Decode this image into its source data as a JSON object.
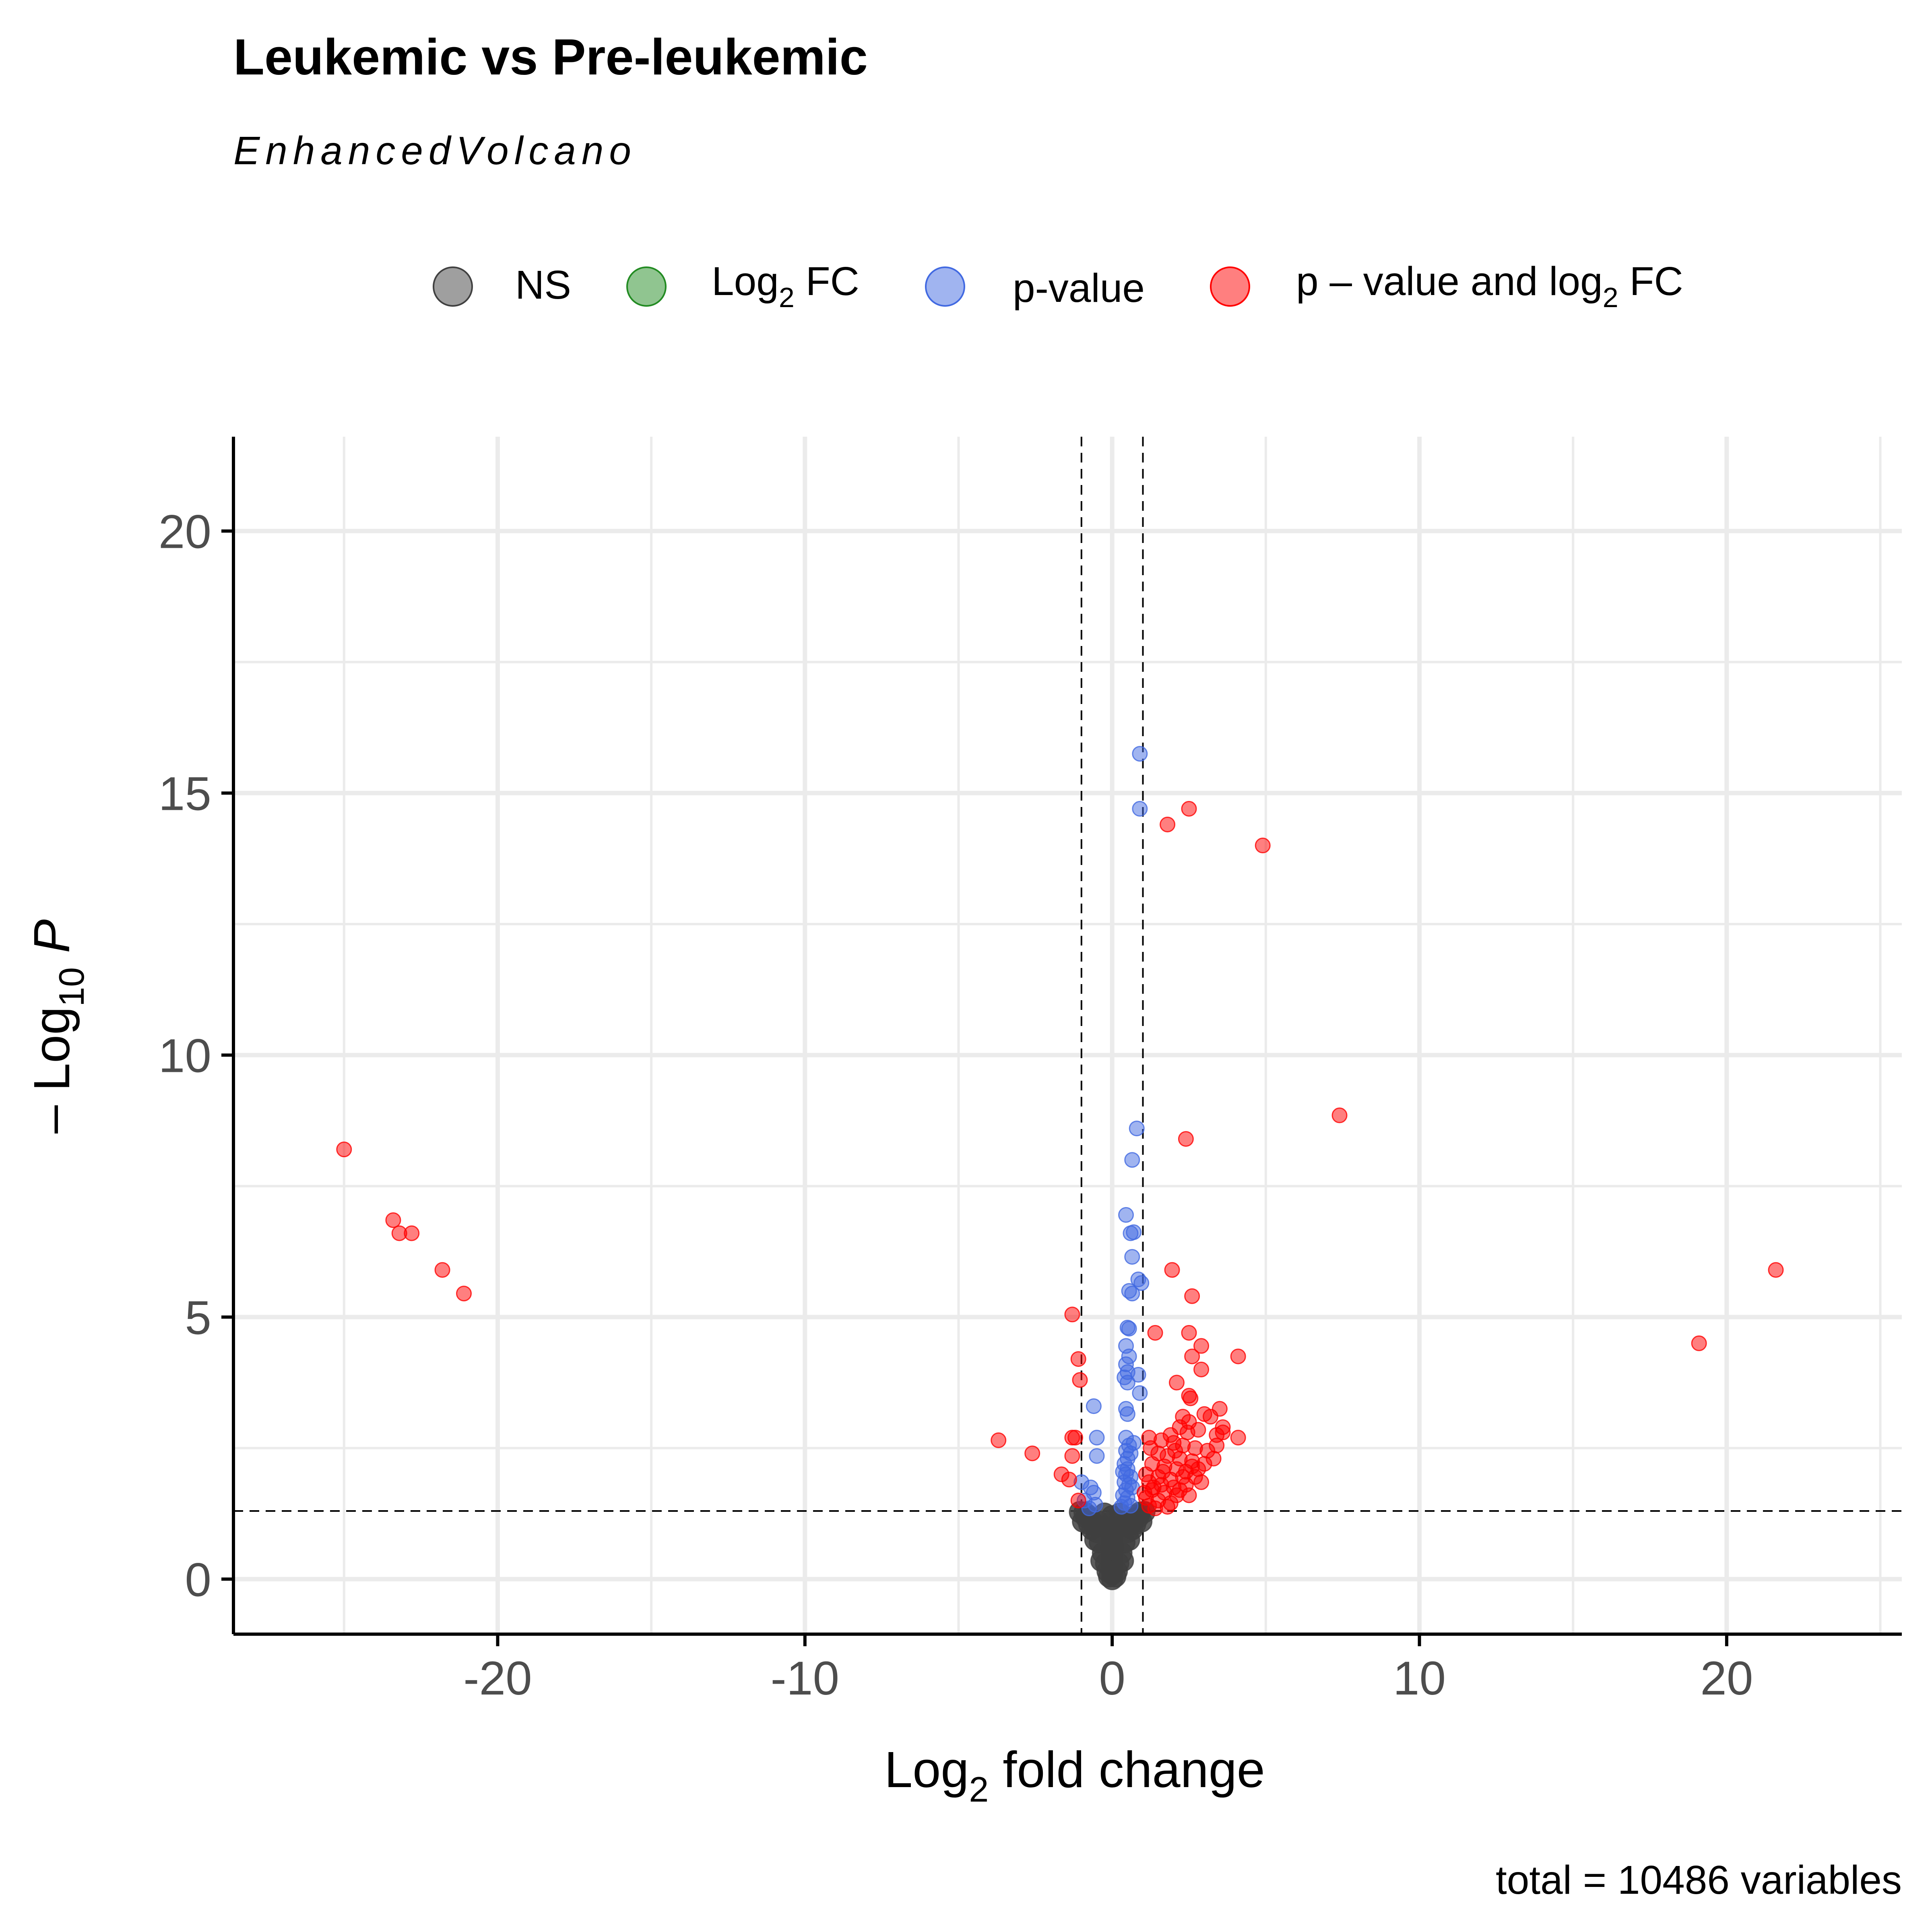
{
  "chart_data": {
    "type": "scatter",
    "title": "Leukemic vs Pre-leukemic",
    "subtitle": "EnhancedVolcano",
    "caption": "total = 10486 variables",
    "xlabel": {
      "main": "Log",
      "sub": "2",
      "rest": " fold change"
    },
    "ylabel": {
      "prefix": "– Log",
      "sub": "10",
      "italic": "P"
    },
    "xlim": [
      -28.6,
      25.7
    ],
    "ylim": [
      -1.05,
      21.8
    ],
    "x_ticks": [
      {
        "value": -20,
        "label": "-20"
      },
      {
        "value": -10,
        "label": "-10"
      },
      {
        "value": 0,
        "label": "0"
      },
      {
        "value": 10,
        "label": "10"
      },
      {
        "value": 20,
        "label": "20"
      }
    ],
    "y_ticks": [
      {
        "value": 0,
        "label": "0"
      },
      {
        "value": 5,
        "label": "5"
      },
      {
        "value": 10,
        "label": "10"
      },
      {
        "value": 15,
        "label": "15"
      },
      {
        "value": 20,
        "label": "20"
      }
    ],
    "x_minor_grid": [
      -25,
      -15,
      -5,
      5,
      15,
      25
    ],
    "y_minor_grid": [
      2.5,
      7.5,
      12.5,
      17.5
    ],
    "grid": true,
    "cutoffs": {
      "fc": [
        -1,
        1
      ],
      "p": 1.3
    },
    "legend": {
      "position": "top",
      "entries": [
        {
          "key": "ns",
          "label": "NS",
          "color": "#404040"
        },
        {
          "key": "fc",
          "label_main": "Log",
          "label_sub": "2",
          "label_rest": " FC",
          "color": "#228b22"
        },
        {
          "key": "p",
          "label": "p-value",
          "color": "#4169e1"
        },
        {
          "key": "both",
          "label_main": "p – value and log",
          "label_sub": "2",
          "label_rest": " FC",
          "color": "#ff0000"
        }
      ]
    },
    "series": [
      {
        "key": "ns",
        "color": "#404040",
        "points": [
          [
            0,
            0
          ],
          [
            0,
            0.1
          ],
          [
            0,
            0.2
          ],
          [
            0,
            0.3
          ],
          [
            0,
            0.4
          ],
          [
            0,
            0.5
          ],
          [
            0,
            0.6
          ],
          [
            0,
            0.7
          ],
          [
            0,
            0.8
          ],
          [
            0,
            0.9
          ],
          [
            0,
            1.0
          ],
          [
            0,
            1.1
          ],
          [
            0,
            1.2
          ],
          [
            -0.1,
            0.05
          ],
          [
            0.1,
            0.05
          ],
          [
            -0.15,
            0.15
          ],
          [
            0.15,
            0.15
          ],
          [
            -0.2,
            0.3
          ],
          [
            0.2,
            0.3
          ],
          [
            -0.3,
            0.5
          ],
          [
            0.3,
            0.5
          ],
          [
            -0.4,
            0.7
          ],
          [
            0.4,
            0.7
          ],
          [
            -0.5,
            0.9
          ],
          [
            0.5,
            0.9
          ],
          [
            -0.6,
            1.05
          ],
          [
            0.6,
            1.05
          ],
          [
            -0.7,
            1.15
          ],
          [
            0.7,
            1.15
          ],
          [
            -0.8,
            1.22
          ],
          [
            0.8,
            1.22
          ],
          [
            -0.9,
            1.27
          ],
          [
            0.9,
            1.27
          ],
          [
            -0.25,
            1.25
          ],
          [
            0.25,
            1.25
          ],
          [
            -0.35,
            0.35
          ],
          [
            0.35,
            0.35
          ],
          [
            -0.55,
            0.75
          ],
          [
            0.55,
            0.75
          ],
          [
            -0.45,
            1.1
          ],
          [
            0.45,
            1.1
          ],
          [
            -0.65,
            0.95
          ],
          [
            0.65,
            0.95
          ],
          [
            -0.75,
            1.05
          ],
          [
            0.75,
            1.05
          ],
          [
            -0.05,
            0.6
          ],
          [
            0.05,
            0.6
          ],
          [
            -0.12,
            0.95
          ],
          [
            0.12,
            0.95
          ],
          [
            -0.85,
            1.18
          ],
          [
            0.85,
            1.18
          ],
          [
            -1.05,
            1.28
          ],
          [
            1.05,
            1.28
          ],
          [
            -0.95,
            1.1
          ],
          [
            0.95,
            1.1
          ]
        ]
      },
      {
        "key": "p",
        "color": "#4169e1",
        "points": [
          [
            0.9,
            15.75
          ],
          [
            0.9,
            14.7
          ],
          [
            0.8,
            8.6
          ],
          [
            0.65,
            8.0
          ],
          [
            0.45,
            6.95
          ],
          [
            0.6,
            6.6
          ],
          [
            0.7,
            6.62
          ],
          [
            0.65,
            6.15
          ],
          [
            0.85,
            5.72
          ],
          [
            0.95,
            5.65
          ],
          [
            0.55,
            5.5
          ],
          [
            0.65,
            5.45
          ],
          [
            0.5,
            4.8
          ],
          [
            0.55,
            4.78
          ],
          [
            0.45,
            4.45
          ],
          [
            0.55,
            4.25
          ],
          [
            0.45,
            4.1
          ],
          [
            0.5,
            3.95
          ],
          [
            0.4,
            3.85
          ],
          [
            0.5,
            3.75
          ],
          [
            0.85,
            3.9
          ],
          [
            0.9,
            3.55
          ],
          [
            -0.6,
            3.3
          ],
          [
            0.45,
            3.25
          ],
          [
            0.5,
            3.15
          ],
          [
            -0.5,
            2.7
          ],
          [
            0.45,
            2.7
          ],
          [
            0.55,
            2.55
          ],
          [
            0.45,
            2.45
          ],
          [
            0.6,
            2.4
          ],
          [
            0.5,
            2.3
          ],
          [
            0.4,
            2.2
          ],
          [
            -0.5,
            2.35
          ],
          [
            0.5,
            2.1
          ],
          [
            0.45,
            2.0
          ],
          [
            0.6,
            1.95
          ],
          [
            0.4,
            1.85
          ],
          [
            0.55,
            1.8
          ],
          [
            -1.0,
            1.85
          ],
          [
            -0.7,
            1.75
          ],
          [
            0.45,
            1.7
          ],
          [
            -0.6,
            1.65
          ],
          [
            0.35,
            1.6
          ],
          [
            0.5,
            1.55
          ],
          [
            -0.9,
            1.5
          ],
          [
            0.4,
            1.45
          ],
          [
            -0.55,
            1.42
          ],
          [
            0.6,
            1.4
          ],
          [
            0.3,
            1.38
          ],
          [
            -0.75,
            1.35
          ],
          [
            0.7,
            2.6
          ],
          [
            0.35,
            2.05
          ],
          [
            0.65,
            1.75
          ]
        ]
      },
      {
        "key": "both",
        "color": "#ff0000",
        "points": [
          [
            -25.0,
            8.2
          ],
          [
            -23.4,
            6.85
          ],
          [
            -23.2,
            6.6
          ],
          [
            -22.8,
            6.6
          ],
          [
            -21.8,
            5.9
          ],
          [
            -21.1,
            5.45
          ],
          [
            2.5,
            14.7
          ],
          [
            1.8,
            14.4
          ],
          [
            4.9,
            14.0
          ],
          [
            7.4,
            8.85
          ],
          [
            2.4,
            8.4
          ],
          [
            21.6,
            5.9
          ],
          [
            19.1,
            4.5
          ],
          [
            1.95,
            5.9
          ],
          [
            2.6,
            5.4
          ],
          [
            -1.3,
            5.05
          ],
          [
            -1.1,
            4.2
          ],
          [
            -1.05,
            3.8
          ],
          [
            -1.3,
            2.7
          ],
          [
            -1.2,
            2.7
          ],
          [
            -3.7,
            2.65
          ],
          [
            -2.6,
            2.4
          ],
          [
            -1.3,
            2.35
          ],
          [
            -1.65,
            2.0
          ],
          [
            -1.4,
            1.9
          ],
          [
            -1.1,
            1.5
          ],
          [
            1.4,
            4.7
          ],
          [
            2.5,
            4.7
          ],
          [
            2.9,
            4.45
          ],
          [
            2.6,
            4.25
          ],
          [
            4.1,
            4.25
          ],
          [
            2.9,
            4.0
          ],
          [
            2.1,
            3.75
          ],
          [
            2.5,
            3.5
          ],
          [
            2.55,
            3.45
          ],
          [
            3.5,
            3.25
          ],
          [
            3.0,
            3.15
          ],
          [
            2.3,
            3.1
          ],
          [
            3.2,
            3.1
          ],
          [
            2.5,
            3.0
          ],
          [
            2.8,
            2.85
          ],
          [
            3.4,
            2.75
          ],
          [
            4.1,
            2.7
          ],
          [
            1.2,
            2.7
          ],
          [
            1.6,
            2.65
          ],
          [
            2.0,
            2.6
          ],
          [
            2.3,
            2.55
          ],
          [
            2.7,
            2.5
          ],
          [
            3.1,
            2.45
          ],
          [
            1.5,
            2.4
          ],
          [
            1.8,
            2.35
          ],
          [
            2.2,
            2.3
          ],
          [
            2.6,
            2.25
          ],
          [
            3.3,
            2.3
          ],
          [
            1.3,
            2.2
          ],
          [
            1.7,
            2.15
          ],
          [
            2.1,
            2.1
          ],
          [
            2.4,
            2.05
          ],
          [
            2.8,
            2.1
          ],
          [
            1.1,
            2.0
          ],
          [
            1.5,
            1.95
          ],
          [
            1.9,
            1.9
          ],
          [
            2.3,
            1.95
          ],
          [
            2.7,
            1.95
          ],
          [
            1.2,
            1.85
          ],
          [
            1.6,
            1.8
          ],
          [
            2.0,
            1.75
          ],
          [
            2.4,
            1.8
          ],
          [
            1.3,
            1.7
          ],
          [
            1.7,
            1.65
          ],
          [
            2.1,
            1.6
          ],
          [
            1.1,
            1.55
          ],
          [
            1.5,
            1.5
          ],
          [
            1.9,
            1.45
          ],
          [
            1.2,
            1.4
          ],
          [
            1.4,
            1.35
          ],
          [
            1.8,
            1.38
          ],
          [
            2.2,
            1.7
          ],
          [
            2.6,
            2.15
          ],
          [
            3.0,
            2.2
          ],
          [
            2.9,
            1.85
          ],
          [
            2.5,
            1.6
          ],
          [
            1.35,
            1.75
          ],
          [
            1.65,
            2.05
          ],
          [
            2.05,
            2.45
          ],
          [
            2.45,
            2.8
          ],
          [
            1.25,
            2.5
          ],
          [
            3.6,
            2.9
          ],
          [
            2.2,
            2.9
          ],
          [
            1.05,
            1.65
          ],
          [
            3.6,
            2.8
          ],
          [
            3.4,
            2.55
          ],
          [
            1.9,
            2.75
          ]
        ]
      }
    ]
  }
}
